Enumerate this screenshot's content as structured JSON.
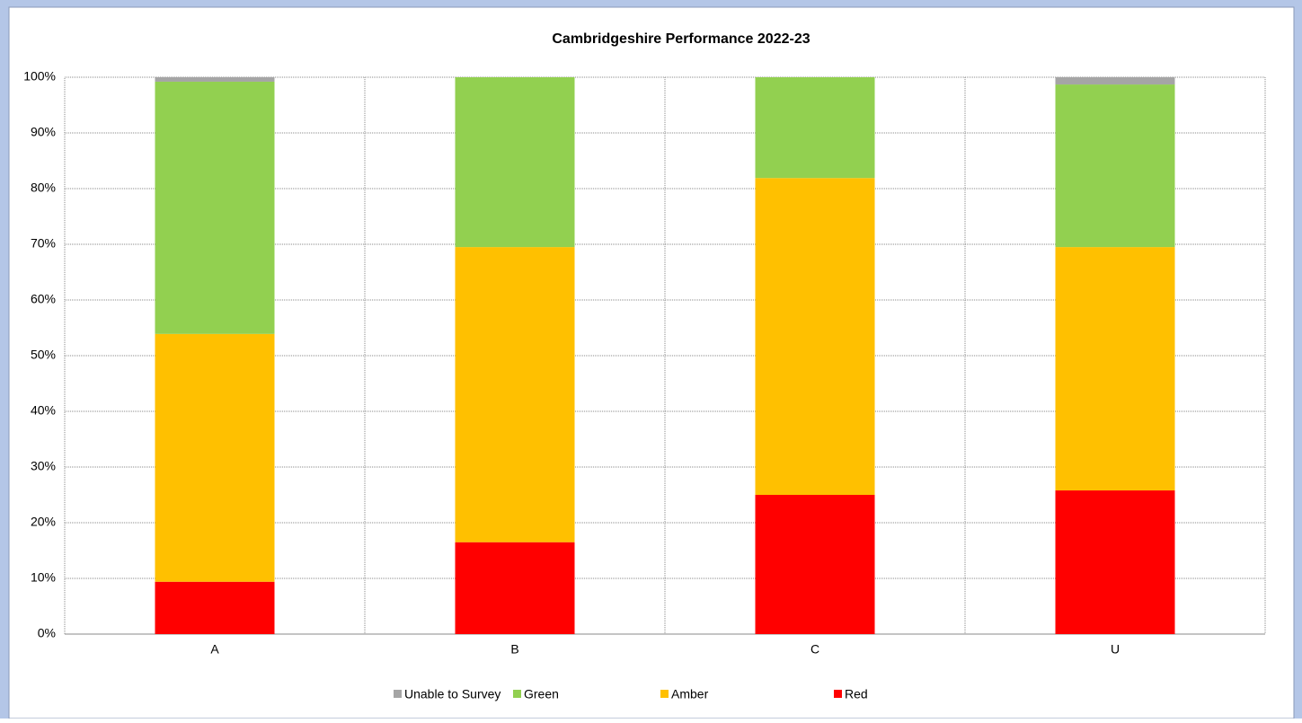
{
  "chart_data": {
    "type": "stacked_bar",
    "title": "Cambridgeshire Performance 2022-23",
    "categories": [
      "A",
      "B",
      "C",
      "U"
    ],
    "series": [
      {
        "name": "Red",
        "color": "#ff0000",
        "values": [
          9.4,
          16.5,
          25.0,
          25.8
        ]
      },
      {
        "name": "Amber",
        "color": "#ffc000",
        "values": [
          44.5,
          53.0,
          56.9,
          43.7
        ]
      },
      {
        "name": "Green",
        "color": "#92d050",
        "values": [
          45.3,
          30.5,
          18.1,
          29.2
        ]
      },
      {
        "name": "Unable to Survey",
        "color": "#a5a5a5",
        "values": [
          0.8,
          0,
          0,
          1.3
        ]
      }
    ],
    "ylim": [
      0,
      100
    ],
    "yticks": [
      {
        "value": 0,
        "label": "0%"
      },
      {
        "value": 10,
        "label": "10%"
      },
      {
        "value": 20,
        "label": "20%"
      },
      {
        "value": 30,
        "label": "30%"
      },
      {
        "value": 40,
        "label": "40%"
      },
      {
        "value": 50,
        "label": "50%"
      },
      {
        "value": 60,
        "label": "60%"
      },
      {
        "value": 70,
        "label": "70%"
      },
      {
        "value": 80,
        "label": "80%"
      },
      {
        "value": 90,
        "label": "90%"
      },
      {
        "value": 100,
        "label": "100%"
      }
    ],
    "grid": true,
    "legend": "bottom"
  }
}
